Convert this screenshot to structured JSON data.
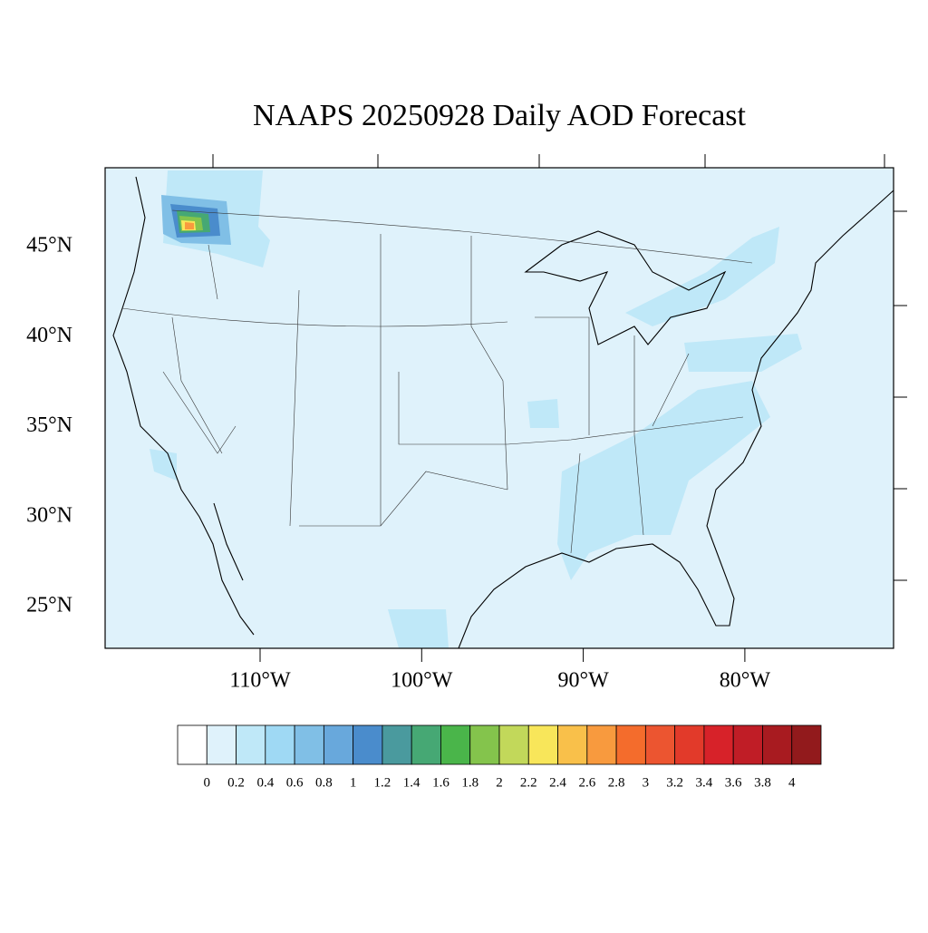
{
  "title": "NAAPS 20250928 Daily AOD Forecast",
  "latitude_ticks": [
    {
      "value": 45,
      "label": "45°N"
    },
    {
      "value": 40,
      "label": "40°N"
    },
    {
      "value": 35,
      "label": "35°N"
    },
    {
      "value": 30,
      "label": "30°N"
    },
    {
      "value": 25,
      "label": "25°N"
    }
  ],
  "longitude_ticks": [
    {
      "value": -110,
      "label": "110°W"
    },
    {
      "value": -100,
      "label": "100°W"
    },
    {
      "value": -90,
      "label": "90°W"
    },
    {
      "value": -80,
      "label": "80°W"
    }
  ],
  "colorbar": {
    "labels": [
      0,
      0.2,
      0.4,
      0.6,
      0.8,
      1,
      1.2,
      1.4,
      1.6,
      1.8,
      2,
      2.2,
      2.4,
      2.6,
      2.8,
      3,
      3.2,
      3.4,
      3.6,
      3.8,
      4
    ],
    "colors": [
      "#ffffff",
      "#dff2fb",
      "#bfe8f8",
      "#9fd9f4",
      "#80bfe6",
      "#68a8dc",
      "#4a8ccc",
      "#4a9a9e",
      "#46a874",
      "#4ab54a",
      "#84c44c",
      "#c2d85a",
      "#f8e65a",
      "#f9c04a",
      "#f89a3e",
      "#f46c2c",
      "#ec5530",
      "#e23a2a",
      "#d72229",
      "#c01d26",
      "#a81b20",
      "#921a1c"
    ]
  }
}
